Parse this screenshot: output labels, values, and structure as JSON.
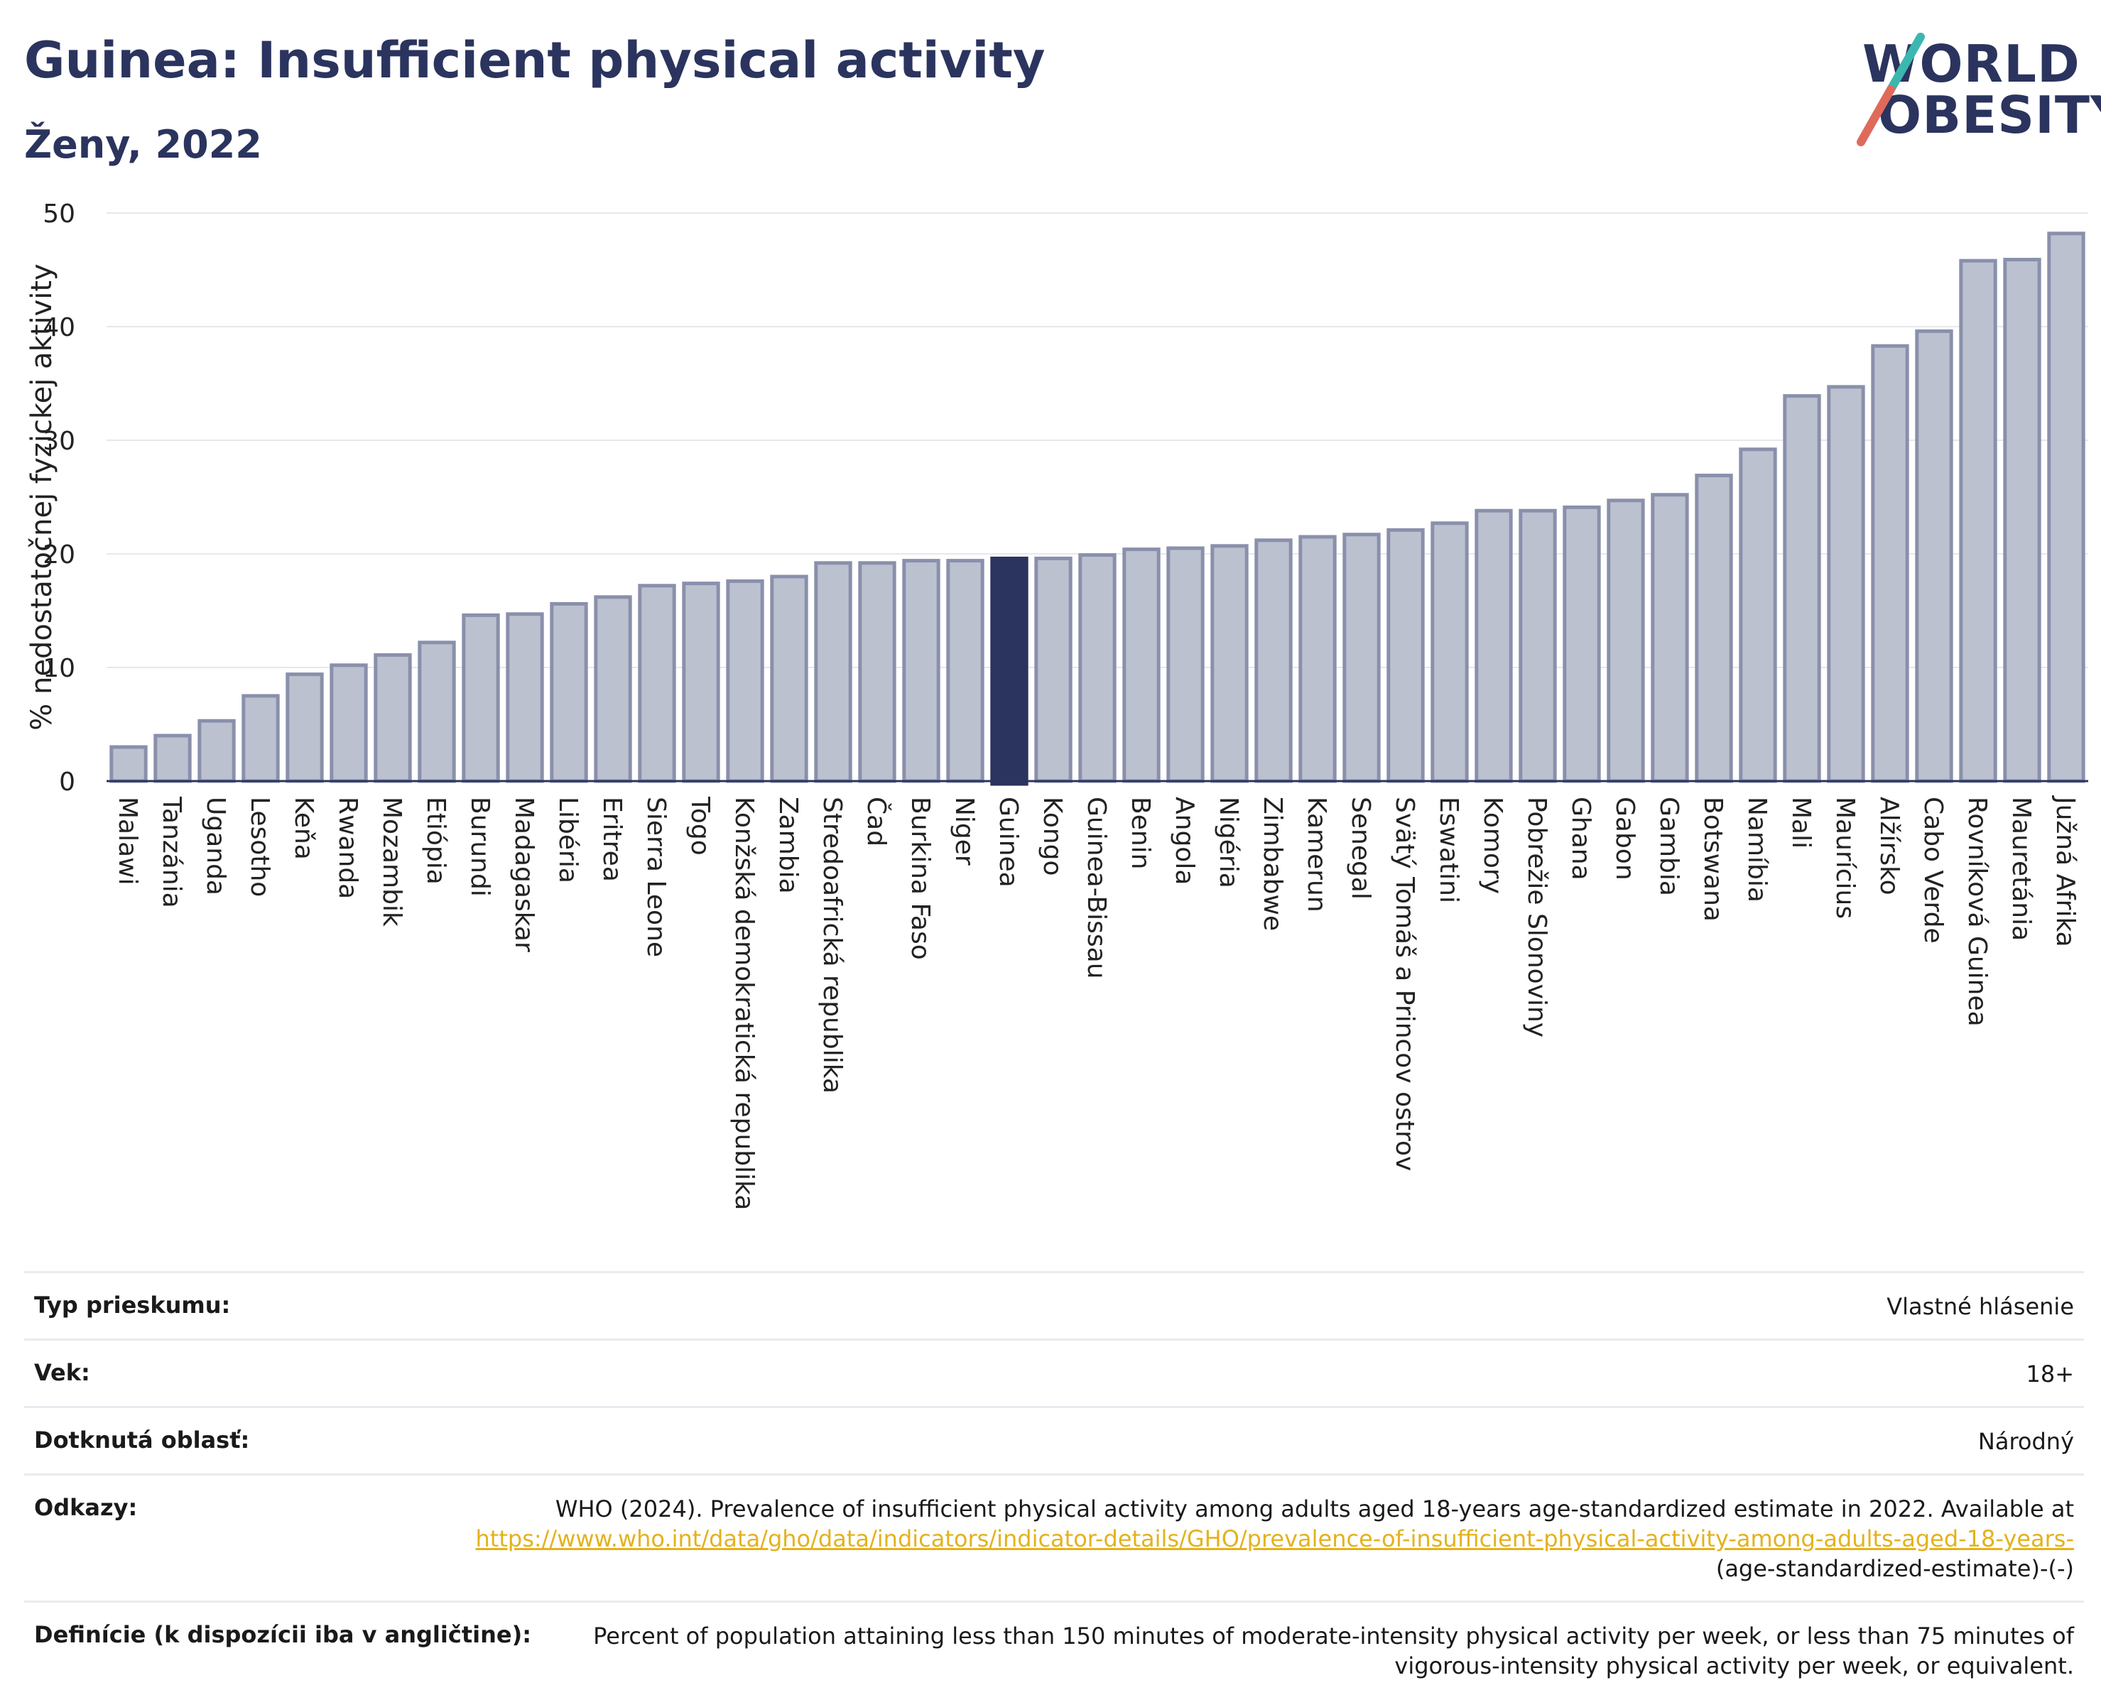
{
  "header": {
    "title": "Guinea: Insufficient physical activity",
    "subtitle": "Ženy, 2022"
  },
  "logo": {
    "line1": "WORLD",
    "line2": "OBESITY"
  },
  "colors": {
    "bar": "#bcc1d0",
    "bar_stroke": "#8a90ab",
    "highlight": "#2b345e",
    "grid": "#e6e8ee",
    "title": "#2b345e",
    "link": "#e3b21c"
  },
  "chart_data": {
    "type": "bar",
    "ylabel": "% nedostatočnej fyzickej aktivity",
    "ylim": [
      0,
      50
    ],
    "yticks": [
      0,
      10,
      20,
      30,
      40,
      50
    ],
    "highlight": "Guinea",
    "categories": [
      "Malawi",
      "Tanzánia",
      "Uganda",
      "Lesotho",
      "Keňa",
      "Rwanda",
      "Mozambik",
      "Etiópia",
      "Burundi",
      "Madagaskar",
      "Libéria",
      "Eritrea",
      "Sierra Leone",
      "Togo",
      "Konžská demokratická republika",
      "Zambia",
      "Stredoafrická republika",
      "Čad",
      "Burkina Faso",
      "Niger",
      "Guinea",
      "Kongo",
      "Guinea-Bissau",
      "Benin",
      "Angola",
      "Nigéria",
      "Zimbabwe",
      "Kamerun",
      "Senegal",
      "Svätý Tomáš a Princov ostrov",
      "Eswatini",
      "Komory",
      "Pobrežie Slonoviny",
      "Ghana",
      "Gabon",
      "Gambia",
      "Botswana",
      "Namíbia",
      "Mali",
      "Maurícius",
      "Alžírsko",
      "Cabo Verde",
      "Rovníková Guinea",
      "Mauretánia",
      "Južná Afrika"
    ],
    "values": [
      3.0,
      4.0,
      5.3,
      7.5,
      9.4,
      10.2,
      11.1,
      12.2,
      14.6,
      14.7,
      15.6,
      16.2,
      17.2,
      17.4,
      17.6,
      18.0,
      19.2,
      19.2,
      19.4,
      19.4,
      19.6,
      19.6,
      19.9,
      20.4,
      20.5,
      20.7,
      21.2,
      21.5,
      21.7,
      22.1,
      22.7,
      23.8,
      23.8,
      24.1,
      24.7,
      25.2,
      26.9,
      29.2,
      33.9,
      34.7,
      38.3,
      39.6,
      45.8,
      45.9,
      48.2
    ]
  },
  "meta": {
    "survey_label": "Typ prieskumu:",
    "survey_value": "Vlastné hlásenie",
    "age_label": "Vek:",
    "age_value": "18+",
    "area_label": "Dotknutá oblasť:",
    "area_value": "Národný",
    "refs_label": "Odkazy:",
    "refs_text": "WHO (2024). Prevalence of insufficient physical activity among adults aged 18-years age-standardized estimate in 2022. Available at",
    "refs_link": "https://www.who.int/data/gho/data/indicators/indicator-details/GHO/prevalence-of-insufficient-physical-activity-among-adults-aged-18-years-",
    "refs_tail": "(age-standardized-estimate)-(-)",
    "def_label": "Definície (k dispozícii iba v angličtine):",
    "def_value": "Percent of population attaining less than 150 minutes of moderate-intensity physical activity per week, or less than 75 minutes of vigorous-intensity physical activity per week, or equivalent."
  }
}
